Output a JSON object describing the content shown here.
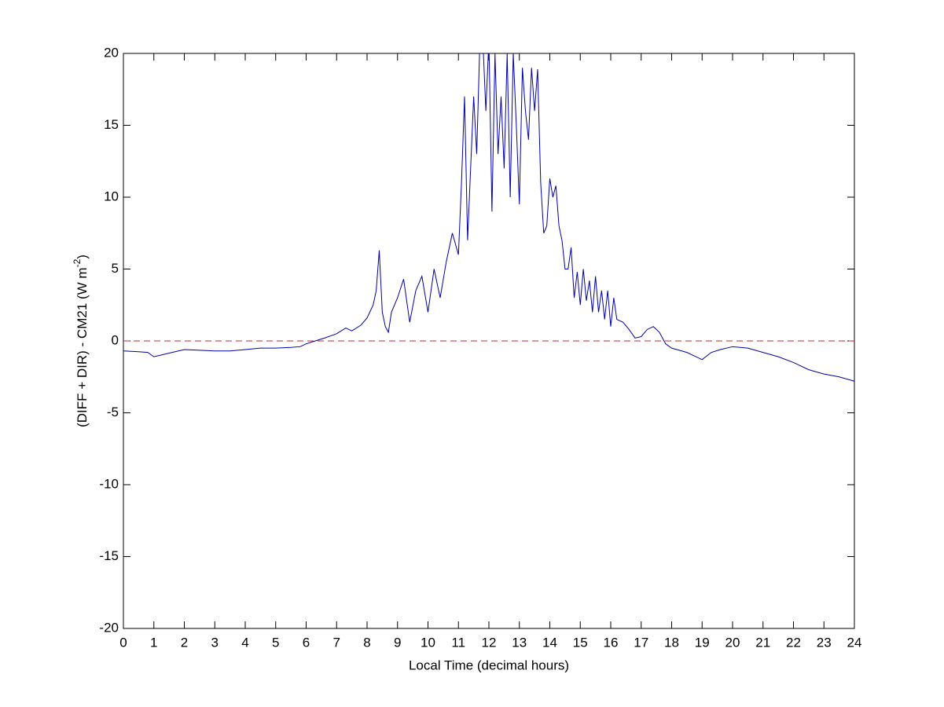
{
  "chart_data": {
    "type": "line",
    "xlabel": "Local Time (decimal hours)",
    "ylabel": {
      "text": "(DIFF + DIR) - CM21 (W m",
      "superscript": "-2",
      "suffix": ")"
    },
    "xlim": [
      0,
      24
    ],
    "ylim": [
      -20,
      20
    ],
    "xticks": [
      0,
      1,
      2,
      3,
      4,
      5,
      6,
      7,
      8,
      9,
      10,
      11,
      12,
      13,
      14,
      15,
      16,
      17,
      18,
      19,
      20,
      21,
      22,
      23,
      24
    ],
    "yticks": [
      -20,
      -15,
      -10,
      -5,
      0,
      5,
      10,
      15,
      20
    ],
    "grid": false,
    "reference_line": {
      "y": 0,
      "color": "#c0282d",
      "style": "dashed"
    },
    "x": [
      0,
      0.5,
      0.8,
      1,
      1.3,
      1.6,
      2,
      2.5,
      3,
      3.5,
      4,
      4.5,
      5,
      5.5,
      5.8,
      6,
      6.3,
      6.6,
      7,
      7.3,
      7.5,
      7.8,
      8,
      8.2,
      8.3,
      8.4,
      8.5,
      8.6,
      8.7,
      8.8,
      9,
      9.2,
      9.4,
      9.6,
      9.8,
      10,
      10.2,
      10.4,
      10.6,
      10.8,
      11,
      11.1,
      11.2,
      11.3,
      11.4,
      11.5,
      11.6,
      11.7,
      11.8,
      11.9,
      12,
      12.1,
      12.2,
      12.3,
      12.4,
      12.5,
      12.6,
      12.7,
      12.8,
      12.9,
      13,
      13.1,
      13.2,
      13.3,
      13.4,
      13.5,
      13.6,
      13.7,
      13.8,
      13.9,
      14,
      14.1,
      14.2,
      14.3,
      14.4,
      14.5,
      14.6,
      14.7,
      14.8,
      14.9,
      15,
      15.1,
      15.2,
      15.3,
      15.4,
      15.5,
      15.6,
      15.7,
      15.8,
      15.9,
      16,
      16.1,
      16.2,
      16.4,
      16.6,
      16.8,
      17,
      17.2,
      17.4,
      17.6,
      17.8,
      18,
      18.5,
      19,
      19.3,
      19.6,
      20,
      20.5,
      21,
      21.5,
      22,
      22.5,
      23,
      23.5,
      24
    ],
    "series": [
      {
        "color": "#0000a8",
        "values": [
          -0.7,
          -0.75,
          -0.8,
          -1.1,
          -0.95,
          -0.8,
          -0.6,
          -0.65,
          -0.7,
          -0.7,
          -0.6,
          -0.5,
          -0.5,
          -0.45,
          -0.4,
          -0.2,
          0,
          0.2,
          0.5,
          0.9,
          0.7,
          1.1,
          1.6,
          2.5,
          3.5,
          6.3,
          2,
          1,
          0.6,
          2,
          3,
          4.3,
          1.3,
          3.5,
          4.5,
          2,
          5,
          3,
          5.5,
          7.5,
          6,
          11,
          17,
          7,
          12,
          17,
          13,
          20.5,
          21,
          16,
          21,
          9,
          20,
          13,
          17,
          12,
          20,
          10,
          20,
          15,
          9.5,
          19,
          16,
          14,
          19,
          16,
          18.9,
          11,
          7.5,
          8,
          11.3,
          10,
          10.8,
          8,
          7,
          5,
          5,
          6.5,
          3,
          4.8,
          2.5,
          5,
          2.8,
          4.2,
          2,
          4.5,
          2,
          3.5,
          1.5,
          3.5,
          1,
          3,
          1.5,
          1.3,
          0.8,
          0.2,
          0.3,
          0.8,
          1,
          0.6,
          -0.2,
          -0.5,
          -0.8,
          -1.3,
          -0.8,
          -0.6,
          -0.4,
          -0.5,
          -0.8,
          -1.1,
          -1.5,
          -2,
          -2.3,
          -2.5,
          -2.8
        ]
      }
    ]
  }
}
